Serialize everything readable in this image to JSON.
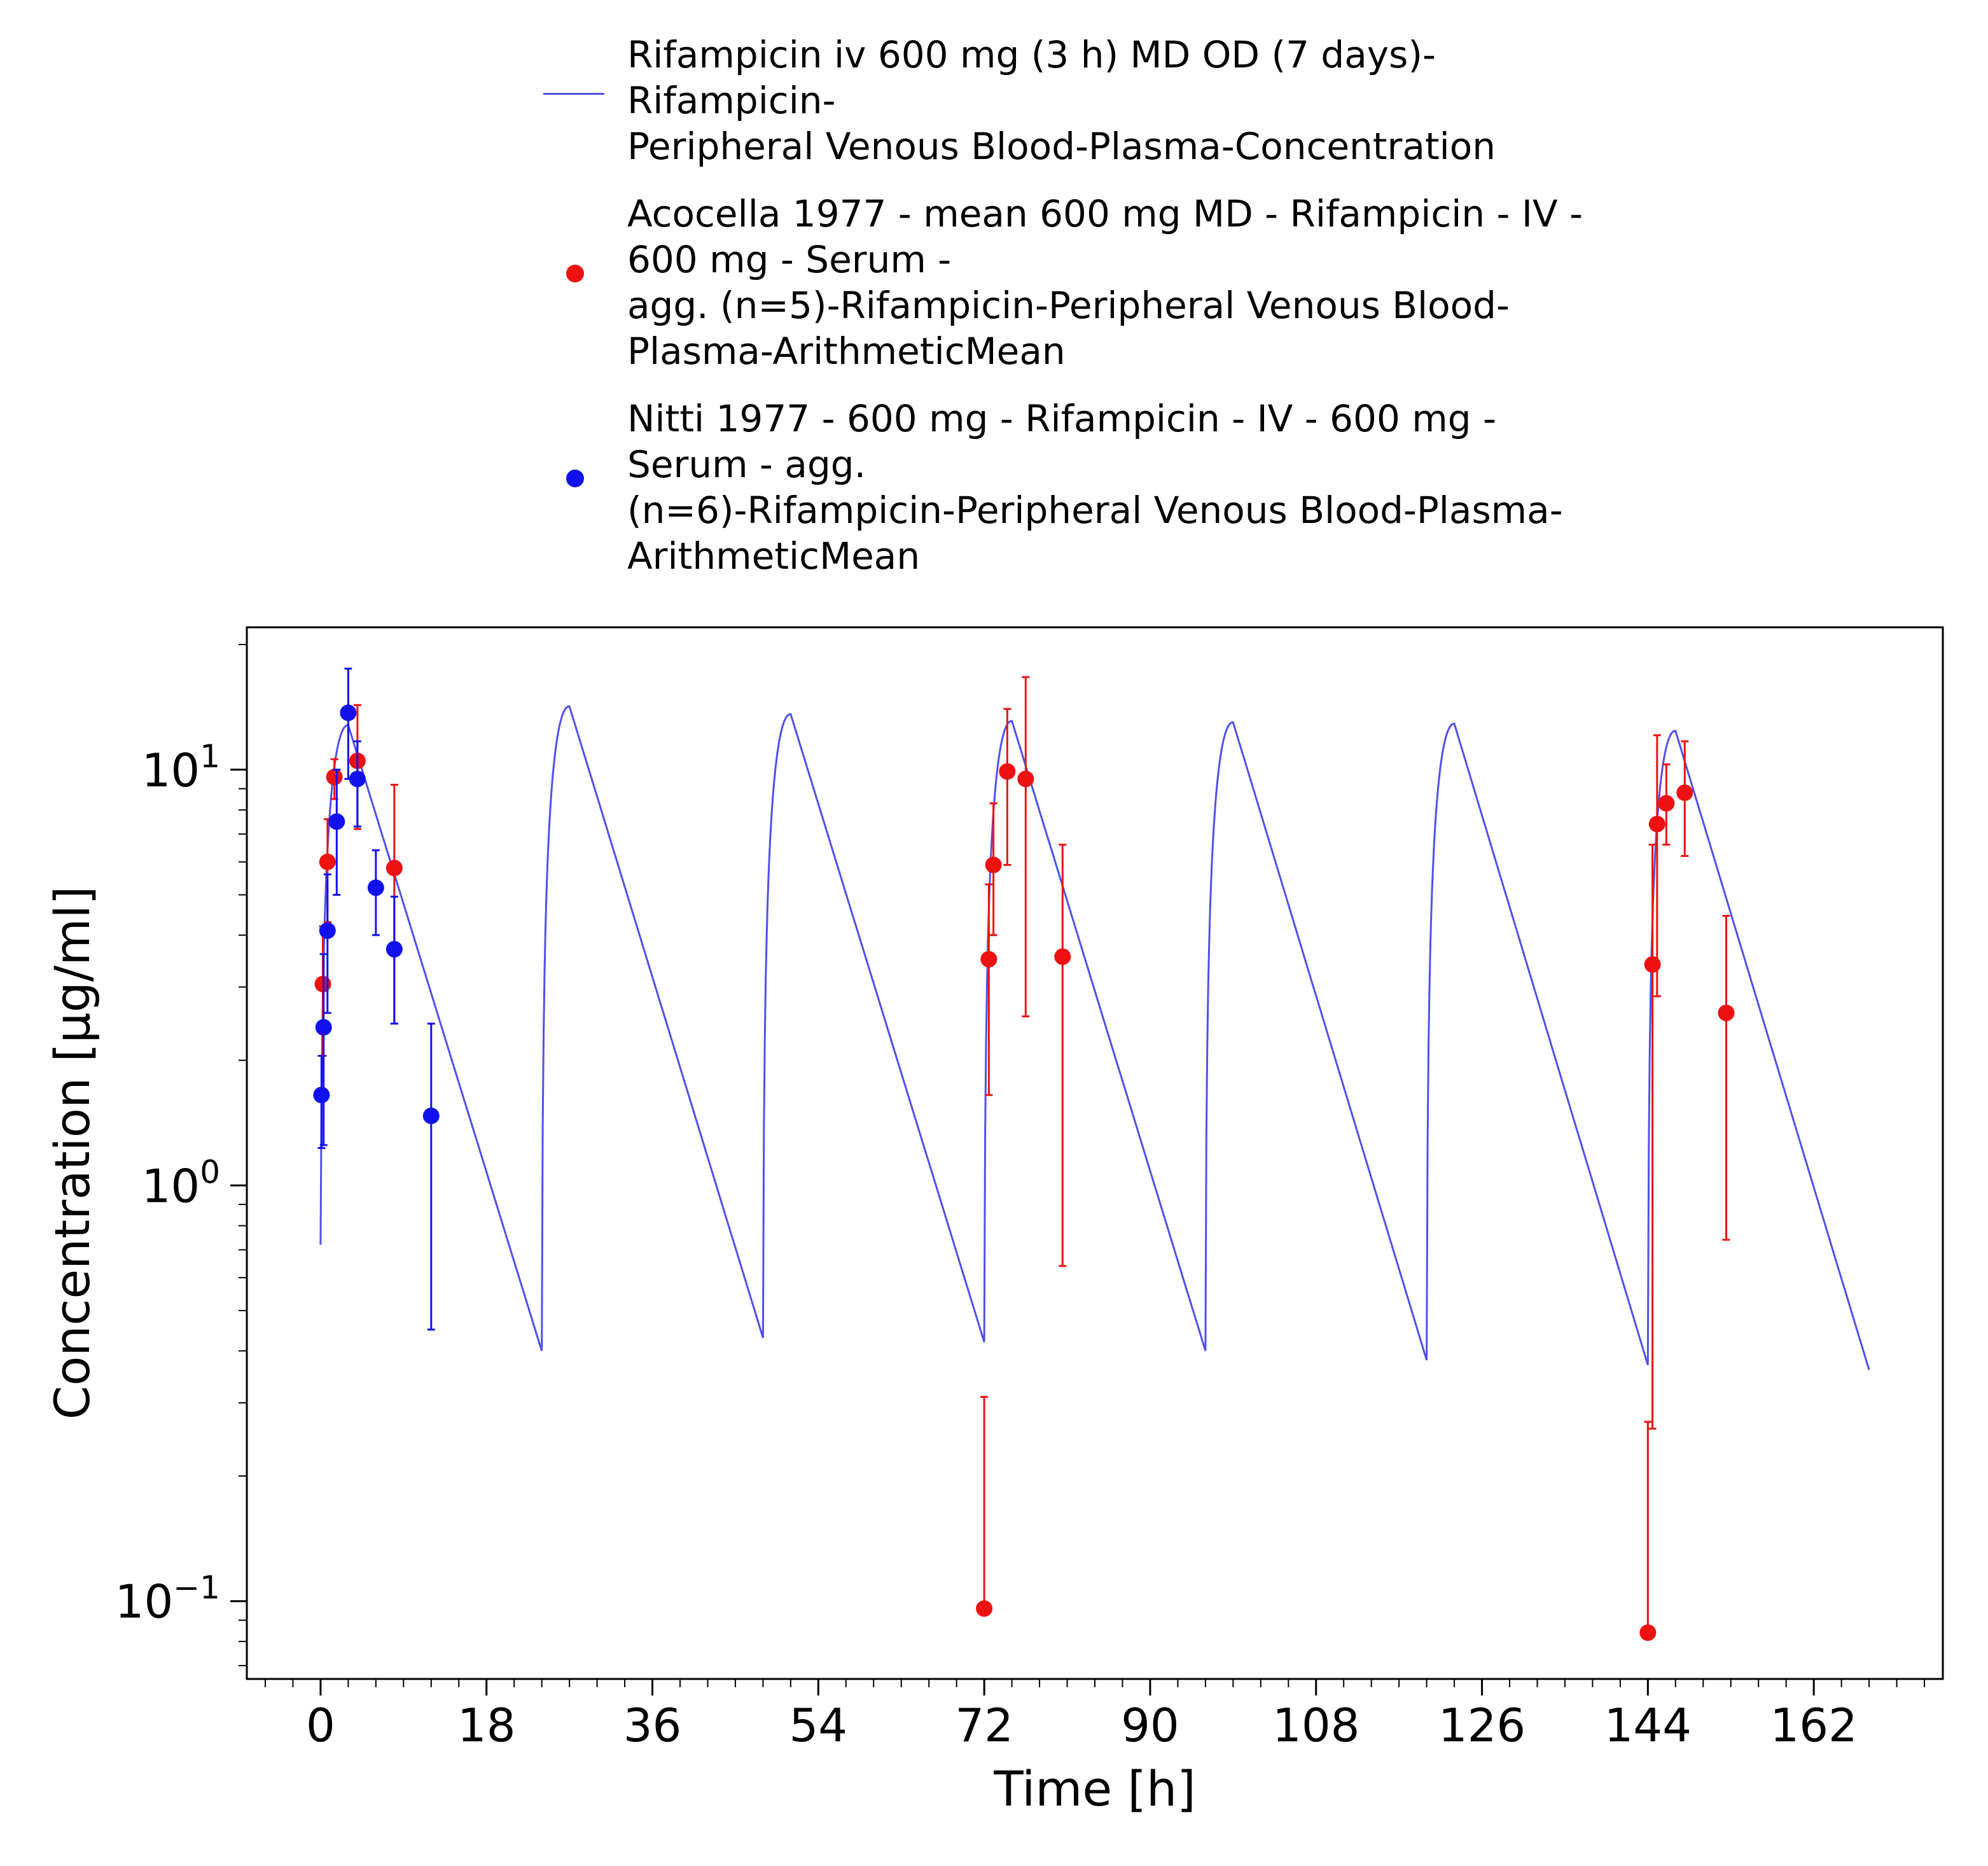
{
  "legend": {
    "model": "Rifampicin iv 600 mg (3 h) MD OD (7 days)-\nRifampicin-\nPeripheral Venous Blood-Plasma-Concentration",
    "acocella": "Acocella 1977 - mean 600 mg MD - Rifampicin - IV -\n600 mg - Serum -\nagg. (n=5)-Rifampicin-Peripheral Venous Blood-\nPlasma-ArithmeticMean",
    "nitti": "Nitti 1977 - 600 mg - Rifampicin - IV - 600 mg -\nSerum - agg.\n(n=6)-Rifampicin-Peripheral Venous Blood-Plasma-\nArithmeticMean"
  },
  "chart_data": {
    "type": "line",
    "xlabel": "Time [h]",
    "ylabel": "Concentration [µg/ml]",
    "xlim": [
      -8,
      176
    ],
    "ylim": [
      0.065,
      22
    ],
    "yscale": "log",
    "xticks": [
      0,
      18,
      36,
      54,
      72,
      90,
      108,
      126,
      144,
      162
    ],
    "xtick_labels": [
      "0",
      "18",
      "36",
      "54",
      "72",
      "90",
      "108",
      "126",
      "144",
      "162"
    ],
    "yticks": [
      0.1,
      1,
      10
    ],
    "ytick_labels": [
      {
        "base": "10",
        "exp": "−1"
      },
      {
        "base": "10",
        "exp": "0"
      },
      {
        "base": "10",
        "exp": "1"
      }
    ],
    "grid": false,
    "legend_position": "top",
    "model_curve": {
      "color": "#5050ee",
      "dose_times": [
        0,
        24,
        48,
        72,
        96,
        120,
        144
      ],
      "infusion_hours": 3,
      "end_time": 168,
      "start_values": [
        0.72,
        0.4,
        0.43,
        0.42,
        0.4,
        0.38,
        0.37
      ],
      "peak_values": [
        12.8,
        14.2,
        13.6,
        13.1,
        13.0,
        12.9,
        12.4
      ],
      "final_value": 0.36
    },
    "series": [
      {
        "color": "#ee1111",
        "points": [
          {
            "x": 0.25,
            "y": 3.05,
            "lo": 2.05,
            "hi": 4.2
          },
          {
            "x": 0.75,
            "y": 6.0,
            "lo": 4.3,
            "hi": 7.6
          },
          {
            "x": 1.5,
            "y": 9.6,
            "lo": 8.5,
            "hi": 10.6
          },
          {
            "x": 4.0,
            "y": 10.5,
            "lo": 7.2,
            "hi": 14.3
          },
          {
            "x": 8.0,
            "y": 5.8,
            "lo": 2.45,
            "hi": 9.2
          },
          {
            "x": 72.0,
            "y": 0.096,
            "lo": 0.096,
            "hi": 0.31
          },
          {
            "x": 72.5,
            "y": 3.5,
            "lo": 1.65,
            "hi": 5.3
          },
          {
            "x": 73.0,
            "y": 5.9,
            "lo": 4.0,
            "hi": 8.3
          },
          {
            "x": 74.5,
            "y": 9.9,
            "lo": 5.9,
            "hi": 14.0
          },
          {
            "x": 76.5,
            "y": 9.5,
            "lo": 2.55,
            "hi": 16.7
          },
          {
            "x": 80.5,
            "y": 3.55,
            "lo": 0.64,
            "hi": 6.6
          },
          {
            "x": 144.0,
            "y": 0.084,
            "lo": 0.084,
            "hi": 0.27
          },
          {
            "x": 144.5,
            "y": 3.4,
            "lo": 0.26,
            "hi": 6.6
          },
          {
            "x": 145.0,
            "y": 7.4,
            "lo": 2.85,
            "hi": 12.1
          },
          {
            "x": 146.0,
            "y": 8.3,
            "lo": 6.6,
            "hi": 10.3
          },
          {
            "x": 148.0,
            "y": 8.8,
            "lo": 6.2,
            "hi": 11.7
          },
          {
            "x": 152.5,
            "y": 2.6,
            "lo": 0.74,
            "hi": 4.45
          }
        ]
      },
      {
        "color": "#1111ee",
        "points": [
          {
            "x": 0.1,
            "y": 1.65,
            "lo": 1.23,
            "hi": 2.05
          },
          {
            "x": 0.33,
            "y": 2.4,
            "lo": 1.25,
            "hi": 3.6
          },
          {
            "x": 0.75,
            "y": 4.1,
            "lo": 2.6,
            "hi": 5.6
          },
          {
            "x": 1.75,
            "y": 7.5,
            "lo": 5.0,
            "hi": 10.0
          },
          {
            "x": 3.0,
            "y": 13.7,
            "lo": 9.5,
            "hi": 17.5
          },
          {
            "x": 4.0,
            "y": 9.5,
            "lo": 7.3,
            "hi": 11.7
          },
          {
            "x": 6.0,
            "y": 5.2,
            "lo": 4.0,
            "hi": 6.4
          },
          {
            "x": 8.0,
            "y": 3.7,
            "lo": 2.45,
            "hi": 4.95
          },
          {
            "x": 12.0,
            "y": 1.47,
            "lo": 0.45,
            "hi": 2.45
          }
        ]
      }
    ]
  }
}
